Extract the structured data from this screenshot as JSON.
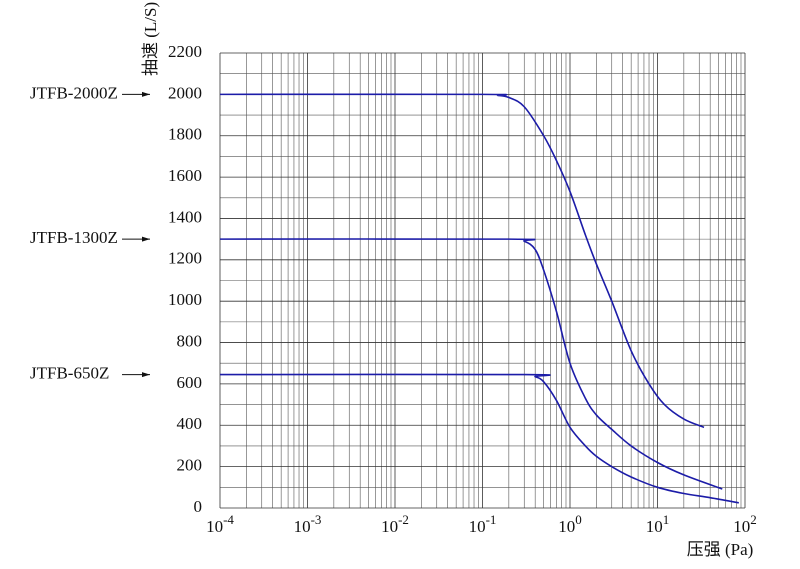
{
  "chart_data": {
    "type": "line",
    "x_label": "压强 (Pa)",
    "y_label": "抽速 (L/S)",
    "log_x": true,
    "grid": true,
    "color": "#1c1ca8",
    "xlim": [
      0.0001,
      100
    ],
    "xticks": [
      {
        "value": 0.0001,
        "label": "10-4"
      },
      {
        "value": 0.001,
        "label": "10-3"
      },
      {
        "value": 0.01,
        "label": "10-2"
      },
      {
        "value": 0.1,
        "label": "10-1"
      },
      {
        "value": 1,
        "label": "100"
      },
      {
        "value": 10,
        "label": "101"
      },
      {
        "value": 100,
        "label": "102"
      }
    ],
    "ylim": [
      0,
      2200
    ],
    "yticks": [
      0,
      200,
      400,
      600,
      800,
      1000,
      1200,
      1400,
      1600,
      1800,
      2000,
      2200
    ],
    "series": [
      {
        "name": "JTFB-2000Z",
        "x": [
          0.0001,
          0.1,
          0.15,
          0.2,
          0.3,
          0.5,
          0.7,
          1,
          1.5,
          2,
          3,
          5,
          8,
          12,
          20,
          34
        ],
        "values": [
          2000,
          2000,
          1995,
          1985,
          1940,
          1800,
          1680,
          1530,
          1320,
          1180,
          1000,
          760,
          600,
          500,
          430,
          390
        ]
      },
      {
        "name": "JTFB-1300Z",
        "x": [
          0.0001,
          0.2,
          0.3,
          0.4,
          0.5,
          0.7,
          1,
          1.5,
          2,
          3,
          5,
          10,
          20,
          55
        ],
        "values": [
          1300,
          1300,
          1290,
          1250,
          1150,
          950,
          700,
          530,
          450,
          380,
          300,
          220,
          160,
          92
        ]
      },
      {
        "name": "JTFB-650Z",
        "x": [
          0.0001,
          0.3,
          0.4,
          0.5,
          0.7,
          1,
          1.5,
          2,
          3,
          5,
          10,
          20,
          40,
          85
        ],
        "values": [
          645,
          645,
          635,
          610,
          520,
          390,
          300,
          250,
          200,
          150,
          100,
          70,
          50,
          25
        ]
      }
    ]
  }
}
